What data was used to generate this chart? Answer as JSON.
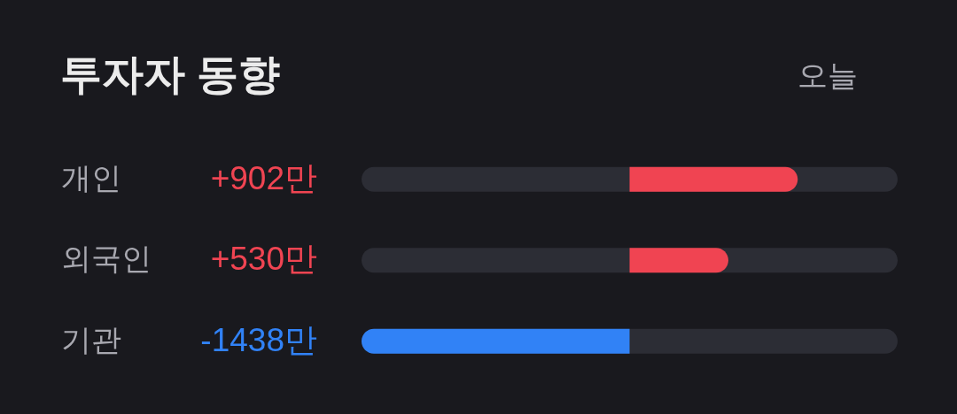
{
  "chart_data": {
    "type": "bar",
    "orientation": "horizontal",
    "title": "투자자 동향",
    "annotations": [
      "오늘"
    ],
    "categories": [
      "개인",
      "외국인",
      "기관"
    ],
    "values": [
      902,
      530,
      -1438
    ],
    "colors": [
      "#f04452",
      "#f04452",
      "#3182f6"
    ],
    "value_labels": [
      "+902만",
      "+530만",
      "-1438만"
    ],
    "xlim": [
      -1438,
      1438
    ],
    "tick_labels": "y"
  }
}
